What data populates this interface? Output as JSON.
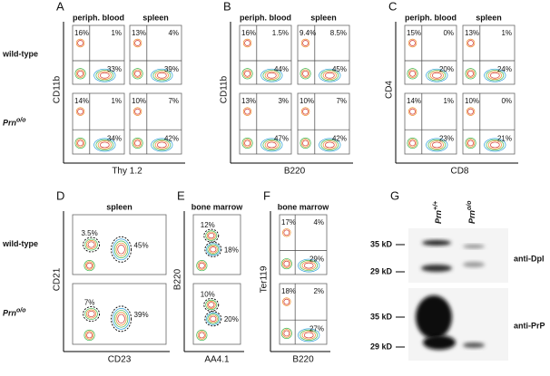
{
  "flow_panels": [
    {
      "label": "A",
      "columns": [
        "periph. blood",
        "spleen"
      ],
      "y_axis": "CD11b",
      "x_axis": "Thy 1.2",
      "rows": [
        {
          "base": "wild-type"
        },
        {
          "base": "Prn",
          "sup": "o/o"
        }
      ],
      "values": [
        [
          [
            "16%",
            "1%",
            "33%"
          ],
          [
            "13%",
            "4%",
            "39%"
          ]
        ],
        [
          [
            "14%",
            "1%",
            "34%"
          ],
          [
            "10%",
            "7%",
            "42%"
          ]
        ]
      ]
    },
    {
      "label": "B",
      "columns": [
        "periph. blood",
        "spleen"
      ],
      "y_axis": "CD11b",
      "x_axis": "B220",
      "values": [
        [
          [
            "16%",
            "1.5%",
            "44%"
          ],
          [
            "9.4%",
            "8.5%",
            "45%"
          ]
        ],
        [
          [
            "13%",
            "3%",
            "47%"
          ],
          [
            "10%",
            "7%",
            "42%"
          ]
        ]
      ]
    },
    {
      "label": "C",
      "columns": [
        "periph. blood",
        "spleen"
      ],
      "y_axis": "CD4",
      "x_axis": "CD8",
      "values": [
        [
          [
            "15%",
            "0%",
            "20%"
          ],
          [
            "13%",
            "1%",
            "24%"
          ]
        ],
        [
          [
            "14%",
            "1%",
            "23%"
          ],
          [
            "10%",
            "0%",
            "21%"
          ]
        ]
      ]
    },
    {
      "label": "D",
      "columns": [
        "spleen"
      ],
      "y_axis": "CD21",
      "x_axis": "CD23",
      "rows": [
        {
          "base": "wild-type"
        },
        {
          "base": "Prn",
          "sup": "o/o"
        }
      ],
      "values": [
        [
          [
            "3.5%",
            "45%"
          ]
        ],
        [
          [
            "7%",
            "39%"
          ]
        ]
      ]
    },
    {
      "label": "E",
      "columns": [
        "bone marrow"
      ],
      "y_axis": "B220",
      "x_axis": "AA4.1",
      "values": [
        [
          [
            "12%",
            "18%"
          ]
        ],
        [
          [
            "10%",
            "20%"
          ]
        ]
      ]
    },
    {
      "label": "F",
      "columns": [
        "bone marrow"
      ],
      "y_axis": "Ter119",
      "x_axis": "B220",
      "values": [
        [
          [
            "17%",
            "4%",
            "29%"
          ]
        ],
        [
          [
            "18%",
            "2%",
            "27%"
          ]
        ]
      ]
    }
  ],
  "blot": {
    "label": "G",
    "lanes": [
      {
        "base": "Prn",
        "sup": "+/+"
      },
      {
        "base": "Prn",
        "sup": "o/o"
      }
    ],
    "panels": [
      {
        "markers": [
          "35 kD",
          "29 kD"
        ],
        "antibody": "anti-Dpl"
      },
      {
        "markers": [
          "35 kD",
          "29 kD"
        ],
        "antibody": "anti-PrP"
      }
    ]
  }
}
